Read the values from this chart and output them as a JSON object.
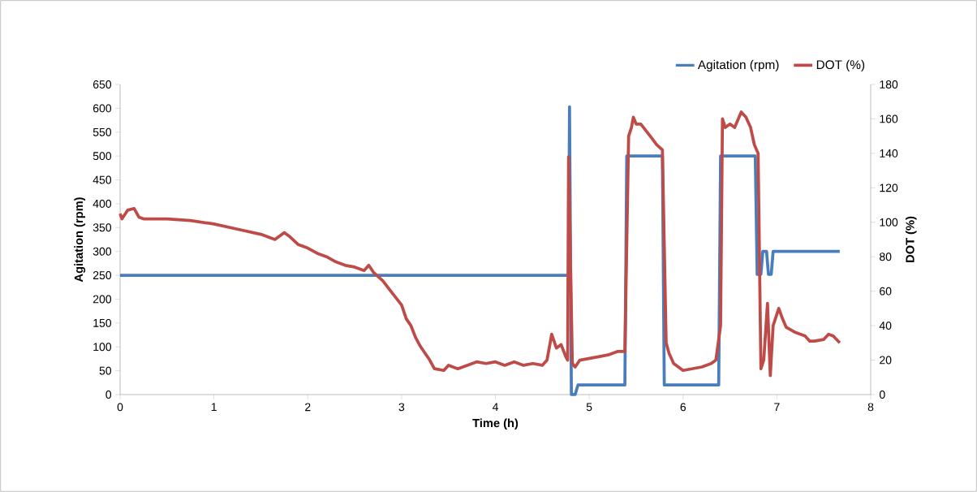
{
  "chart_data": {
    "type": "line",
    "xlabel": "Time (h)",
    "ylabel": "Agitation (rpm)",
    "y2label": "DOT (%)",
    "legend": "top right",
    "xlim": [
      0,
      8
    ],
    "xticks": [
      0,
      1,
      2,
      3,
      4,
      5,
      6,
      7,
      8
    ],
    "ylim": [
      0,
      650
    ],
    "yticks": [
      0,
      50,
      100,
      150,
      200,
      250,
      300,
      350,
      400,
      450,
      500,
      550,
      600,
      650
    ],
    "y2lim": [
      0,
      180
    ],
    "y2ticks": [
      0,
      20,
      40,
      60,
      80,
      100,
      120,
      140,
      160,
      180
    ],
    "series": [
      {
        "name": "Agitation (rpm)",
        "color": "#4a7ebb",
        "x": [
          0,
          4.78,
          4.79,
          4.81,
          4.85,
          4.88,
          5.38,
          5.4,
          5.78,
          5.8,
          6.38,
          6.4,
          6.77,
          6.79,
          6.83,
          6.85,
          6.89,
          6.91,
          6.94,
          6.96,
          7.67
        ],
        "values": [
          250,
          250,
          603,
          0,
          0,
          20,
          20,
          500,
          500,
          20,
          20,
          500,
          500,
          252,
          252,
          300,
          300,
          252,
          252,
          300,
          300
        ]
      },
      {
        "name": "DOT (%)",
        "color": "#be4b48",
        "axis": "y2",
        "x": [
          0,
          0.02,
          0.08,
          0.15,
          0.2,
          0.25,
          0.5,
          0.75,
          1,
          1.25,
          1.5,
          1.65,
          1.75,
          1.8,
          1.9,
          2.0,
          2.1,
          2.2,
          2.3,
          2.4,
          2.5,
          2.6,
          2.65,
          2.7,
          2.8,
          2.9,
          3.0,
          3.05,
          3.1,
          3.15,
          3.2,
          3.3,
          3.35,
          3.45,
          3.5,
          3.6,
          3.7,
          3.8,
          3.9,
          4.0,
          4.1,
          4.2,
          4.3,
          4.4,
          4.5,
          4.55,
          4.6,
          4.65,
          4.7,
          4.75,
          4.77,
          4.78,
          4.82,
          4.85,
          4.9,
          5.0,
          5.1,
          5.2,
          5.3,
          5.38,
          5.42,
          5.45,
          5.47,
          5.5,
          5.55,
          5.65,
          5.72,
          5.78,
          5.82,
          5.85,
          5.9,
          6.0,
          6.1,
          6.2,
          6.3,
          6.35,
          6.4,
          6.42,
          6.45,
          6.5,
          6.55,
          6.62,
          6.67,
          6.72,
          6.76,
          6.8,
          6.83,
          6.86,
          6.9,
          6.93,
          6.96,
          7.02,
          7.06,
          7.1,
          7.2,
          7.3,
          7.35,
          7.4,
          7.5,
          7.55,
          7.6,
          7.67
        ],
        "values": [
          105,
          102,
          107,
          108,
          103,
          102,
          102,
          101,
          99,
          96,
          93,
          90,
          94,
          92,
          87,
          85,
          82,
          80,
          77,
          75,
          74,
          72,
          75,
          71,
          66,
          59,
          52,
          44,
          40,
          33,
          28,
          20,
          15,
          14,
          17,
          15,
          17,
          19,
          18,
          19,
          17,
          19,
          17,
          18,
          17,
          20,
          35,
          27,
          29,
          22,
          20,
          138,
          18,
          16,
          20,
          21,
          22,
          23,
          25,
          25,
          150,
          155,
          161,
          157,
          157,
          150,
          145,
          142,
          30,
          24,
          18,
          14,
          15,
          16,
          18,
          20,
          40,
          160,
          155,
          157,
          155,
          164,
          161,
          155,
          145,
          140,
          15,
          20,
          53,
          11,
          40,
          50,
          44,
          39,
          36,
          34,
          31,
          31,
          32,
          35,
          34,
          30
        ]
      }
    ]
  }
}
